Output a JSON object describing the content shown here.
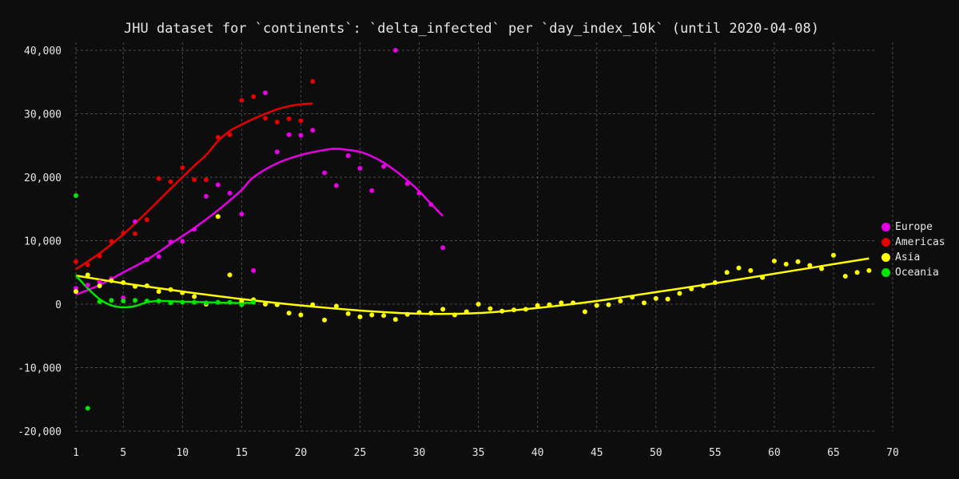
{
  "chart_data": {
    "type": "scatter",
    "title": "JHU dataset for `continents`: `delta_infected` per `day_index_10k` (until 2020-04-08)",
    "xlabel": "",
    "ylabel": "",
    "xlim": [
      1,
      70
    ],
    "ylim": [
      -20000,
      40000
    ],
    "x_ticks": [
      1,
      5,
      10,
      15,
      20,
      25,
      30,
      35,
      40,
      45,
      50,
      55,
      60,
      65,
      70
    ],
    "y_ticks": [
      -20000,
      -10000,
      0,
      10000,
      20000,
      30000,
      40000
    ],
    "x_tick_labels": [
      "1",
      "5",
      "10",
      "15",
      "20",
      "25",
      "30",
      "35",
      "40",
      "45",
      "50",
      "55",
      "60",
      "65",
      "70"
    ],
    "y_tick_labels": [
      "-20,000",
      "-10,000",
      "0",
      "10,000",
      "20,000",
      "30,000",
      "40,000"
    ],
    "grid": true,
    "legend_position": "right",
    "series": [
      {
        "name": "Europe",
        "color": "#e600e6",
        "points": [
          [
            1,
            2500
          ],
          [
            2,
            3000
          ],
          [
            3,
            3500
          ],
          [
            4,
            4000
          ],
          [
            5,
            1000
          ],
          [
            6,
            13000
          ],
          [
            7,
            7000
          ],
          [
            8,
            7500
          ],
          [
            9,
            9800
          ],
          [
            10,
            9900
          ],
          [
            11,
            11800
          ],
          [
            12,
            17000
          ],
          [
            13,
            18800
          ],
          [
            14,
            17500
          ],
          [
            15,
            14200
          ],
          [
            16,
            5300
          ],
          [
            17,
            33300
          ],
          [
            18,
            24000
          ],
          [
            19,
            26700
          ],
          [
            20,
            26600
          ],
          [
            21,
            27400
          ],
          [
            22,
            20700
          ],
          [
            23,
            18700
          ],
          [
            24,
            23400
          ],
          [
            25,
            21400
          ],
          [
            26,
            17900
          ],
          [
            27,
            21700
          ],
          [
            28,
            40000
          ],
          [
            29,
            19000
          ],
          [
            30,
            17500
          ],
          [
            31,
            15700
          ],
          [
            32,
            8900
          ]
        ],
        "trend": [
          [
            1,
            1500
          ],
          [
            3,
            3000
          ],
          [
            5,
            5000
          ],
          [
            7,
            7000
          ],
          [
            9,
            9500
          ],
          [
            11,
            12000
          ],
          [
            13,
            14800
          ],
          [
            15,
            18000
          ],
          [
            16,
            20000
          ],
          [
            18,
            22200
          ],
          [
            20,
            23500
          ],
          [
            22,
            24300
          ],
          [
            23,
            24500
          ],
          [
            24,
            24300
          ],
          [
            25,
            24000
          ],
          [
            26,
            23300
          ],
          [
            27,
            22300
          ],
          [
            28,
            21000
          ],
          [
            29,
            19500
          ],
          [
            30,
            17800
          ],
          [
            31,
            15800
          ],
          [
            32,
            13900
          ]
        ]
      },
      {
        "name": "Americas",
        "color": "#e60000",
        "points": [
          [
            1,
            6700
          ],
          [
            2,
            6200
          ],
          [
            3,
            7600
          ],
          [
            4,
            9900
          ],
          [
            5,
            11200
          ],
          [
            6,
            11100
          ],
          [
            7,
            13300
          ],
          [
            8,
            19800
          ],
          [
            9,
            19300
          ],
          [
            10,
            21500
          ],
          [
            11,
            19600
          ],
          [
            12,
            19600
          ],
          [
            13,
            26300
          ],
          [
            14,
            26700
          ],
          [
            15,
            32100
          ],
          [
            16,
            32700
          ],
          [
            17,
            29300
          ],
          [
            18,
            28700
          ],
          [
            19,
            29200
          ],
          [
            20,
            28900
          ],
          [
            21,
            35100
          ]
        ],
        "trend": [
          [
            1,
            5500
          ],
          [
            3,
            8000
          ],
          [
            5,
            11000
          ],
          [
            7,
            14500
          ],
          [
            9,
            18200
          ],
          [
            11,
            21800
          ],
          [
            12,
            23500
          ],
          [
            13,
            25700
          ],
          [
            14,
            27300
          ],
          [
            15,
            28300
          ],
          [
            16,
            29200
          ],
          [
            17,
            30000
          ],
          [
            18,
            30700
          ],
          [
            19,
            31200
          ],
          [
            20,
            31500
          ],
          [
            21,
            31600
          ]
        ]
      },
      {
        "name": "Asia",
        "color": "#ffff00",
        "points": [
          [
            1,
            2000
          ],
          [
            2,
            4600
          ],
          [
            3,
            2900
          ],
          [
            4,
            3700
          ],
          [
            5,
            3400
          ],
          [
            6,
            2800
          ],
          [
            7,
            2900
          ],
          [
            8,
            2000
          ],
          [
            9,
            2300
          ],
          [
            10,
            1800
          ],
          [
            11,
            1200
          ],
          [
            12,
            0
          ],
          [
            13,
            13800
          ],
          [
            14,
            4600
          ],
          [
            15,
            500
          ],
          [
            16,
            700
          ],
          [
            17,
            0
          ],
          [
            18,
            -100
          ],
          [
            19,
            -1400
          ],
          [
            20,
            -1700
          ],
          [
            21,
            -100
          ],
          [
            22,
            -2500
          ],
          [
            23,
            -300
          ],
          [
            24,
            -1500
          ],
          [
            25,
            -2000
          ],
          [
            26,
            -1700
          ],
          [
            27,
            -1800
          ],
          [
            28,
            -2400
          ],
          [
            29,
            -1600
          ],
          [
            30,
            -1300
          ],
          [
            31,
            -1400
          ],
          [
            32,
            -800
          ],
          [
            33,
            -1700
          ],
          [
            34,
            -1200
          ],
          [
            35,
            0
          ],
          [
            36,
            -700
          ],
          [
            37,
            -1100
          ],
          [
            38,
            -900
          ],
          [
            39,
            -800
          ],
          [
            40,
            -200
          ],
          [
            41,
            -100
          ],
          [
            42,
            200
          ],
          [
            43,
            200
          ],
          [
            44,
            -1200
          ],
          [
            45,
            -200
          ],
          [
            46,
            -100
          ],
          [
            47,
            500
          ],
          [
            48,
            1100
          ],
          [
            49,
            200
          ],
          [
            50,
            900
          ],
          [
            51,
            800
          ],
          [
            52,
            1700
          ],
          [
            53,
            2400
          ],
          [
            54,
            2900
          ],
          [
            55,
            3400
          ],
          [
            56,
            5000
          ],
          [
            57,
            5700
          ],
          [
            58,
            5300
          ],
          [
            59,
            4200
          ],
          [
            60,
            6800
          ],
          [
            61,
            6300
          ],
          [
            62,
            6700
          ],
          [
            63,
            6100
          ],
          [
            64,
            5600
          ],
          [
            65,
            7700
          ],
          [
            66,
            4400
          ],
          [
            67,
            5000
          ],
          [
            68,
            5300
          ]
        ],
        "trend": [
          [
            1,
            4500
          ],
          [
            5,
            3300
          ],
          [
            10,
            2000
          ],
          [
            15,
            800
          ],
          [
            20,
            -200
          ],
          [
            25,
            -1000
          ],
          [
            30,
            -1500
          ],
          [
            35,
            -1400
          ],
          [
            40,
            -600
          ],
          [
            45,
            500
          ],
          [
            50,
            1900
          ],
          [
            55,
            3300
          ],
          [
            60,
            4800
          ],
          [
            65,
            6300
          ],
          [
            68,
            7200
          ]
        ]
      },
      {
        "name": "Oceania",
        "color": "#00e600",
        "points": [
          [
            1,
            17100
          ],
          [
            2,
            -16400
          ],
          [
            3,
            400
          ],
          [
            4,
            600
          ],
          [
            5,
            500
          ],
          [
            6,
            600
          ],
          [
            7,
            500
          ],
          [
            8,
            500
          ],
          [
            9,
            200
          ],
          [
            10,
            300
          ],
          [
            11,
            300
          ],
          [
            12,
            200
          ],
          [
            13,
            300
          ],
          [
            14,
            300
          ],
          [
            15,
            -100
          ],
          [
            16,
            300
          ]
        ],
        "trend": [
          [
            1,
            4500
          ],
          [
            2,
            2500
          ],
          [
            3,
            800
          ],
          [
            4,
            -200
          ],
          [
            5,
            -500
          ],
          [
            6,
            -300
          ],
          [
            7,
            300
          ],
          [
            8,
            500
          ],
          [
            10,
            400
          ],
          [
            12,
            300
          ],
          [
            14,
            200
          ],
          [
            16,
            200
          ]
        ]
      }
    ]
  }
}
